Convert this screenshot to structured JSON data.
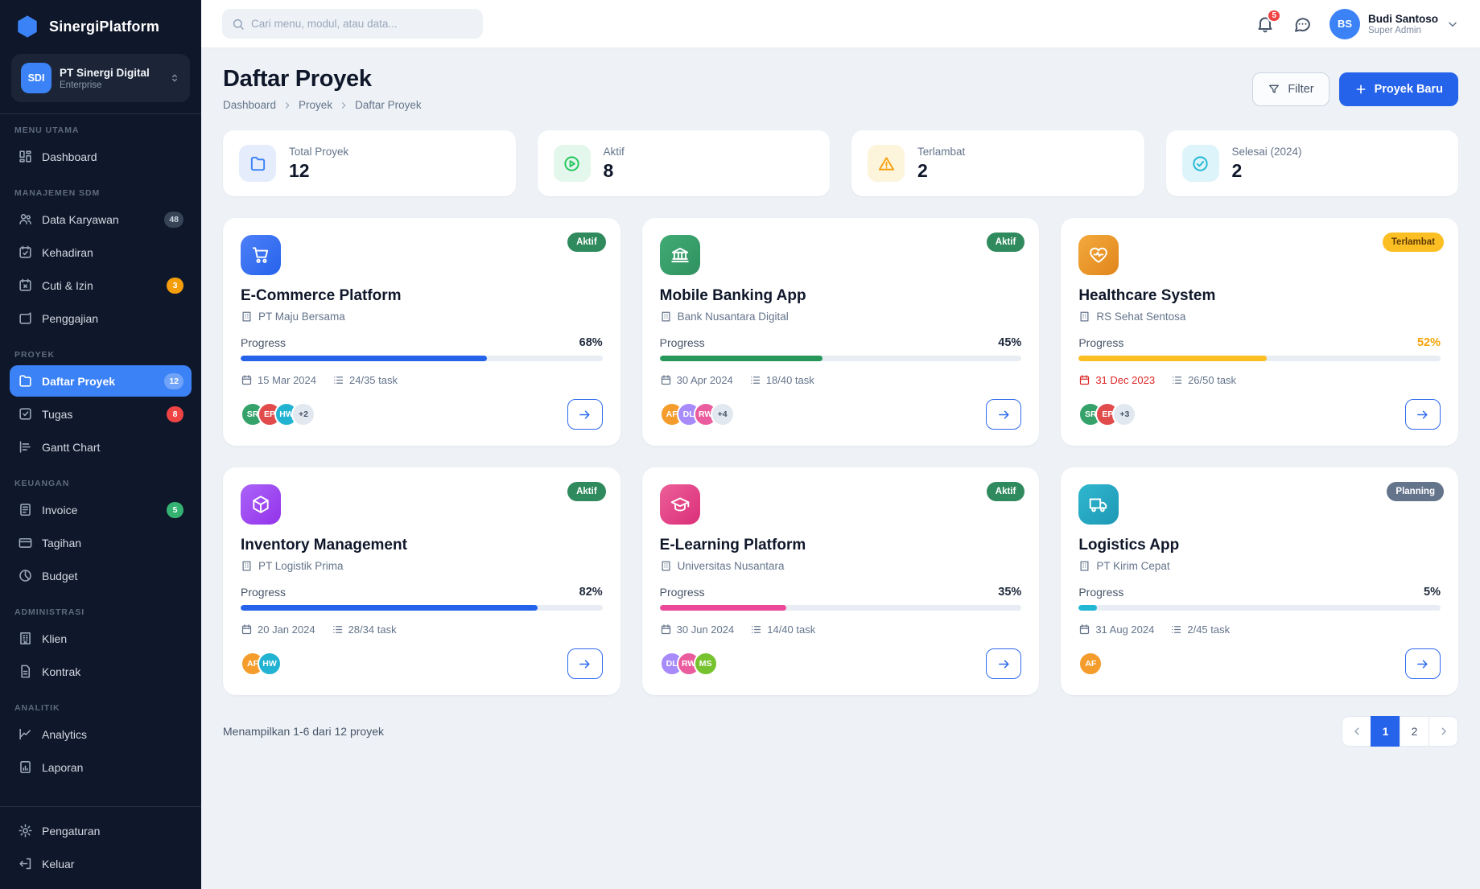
{
  "app": {
    "name": "SinergiPlatform"
  },
  "org": {
    "initials": "SDI",
    "name": "PT Sinergi Digital",
    "plan": "Enterprise"
  },
  "sidebar": {
    "sections": [
      {
        "label": "MENU UTAMA",
        "items": [
          {
            "label": "Dashboard"
          }
        ]
      },
      {
        "label": "MANAJEMEN SDM",
        "items": [
          {
            "label": "Data Karyawan",
            "badge": "48"
          },
          {
            "label": "Kehadiran"
          },
          {
            "label": "Cuti & Izin",
            "badge": "3"
          },
          {
            "label": "Penggajian"
          }
        ]
      },
      {
        "label": "PROYEK",
        "items": [
          {
            "label": "Daftar Proyek",
            "badge": "12",
            "active": true
          },
          {
            "label": "Tugas",
            "badge": "8"
          },
          {
            "label": "Gantt Chart"
          }
        ]
      },
      {
        "label": "KEUANGAN",
        "items": [
          {
            "label": "Invoice",
            "badge": "5"
          },
          {
            "label": "Tagihan"
          },
          {
            "label": "Budget"
          }
        ]
      },
      {
        "label": "ADMINISTRASI",
        "items": [
          {
            "label": "Klien"
          },
          {
            "label": "Kontrak"
          }
        ]
      },
      {
        "label": "ANALITIK",
        "items": [
          {
            "label": "Analytics"
          },
          {
            "label": "Laporan"
          }
        ]
      }
    ],
    "footer_items": [
      {
        "label": "Pengaturan"
      },
      {
        "label": "Keluar"
      }
    ]
  },
  "topbar": {
    "search_placeholder": "Cari menu, modul, atau data...",
    "notification_count": "5",
    "user": {
      "initials": "BS",
      "name": "Budi Santoso",
      "role": "Super Admin"
    }
  },
  "page": {
    "title": "Daftar Proyek",
    "breadcrumb": [
      "Dashboard",
      "Proyek",
      "Daftar Proyek"
    ],
    "filter_label": "Filter",
    "new_project_label": "Proyek Baru"
  },
  "stats": [
    {
      "label": "Total Proyek",
      "value": "12"
    },
    {
      "label": "Aktif",
      "value": "8"
    },
    {
      "label": "Terlambat",
      "value": "2"
    },
    {
      "label": "Selesai (2024)",
      "value": "2"
    }
  ],
  "projects": [
    {
      "name": "E-Commerce Platform",
      "client": "PT Maju Bersama",
      "status": "Aktif",
      "progress_label": "Progress",
      "percent": 68,
      "percent_label": "68%",
      "due": "15 Mar 2024",
      "tasks": "24/35 task",
      "members": [
        {
          "initials": "SR"
        },
        {
          "initials": "EP"
        },
        {
          "initials": "HW"
        }
      ],
      "more": "+2"
    },
    {
      "name": "Mobile Banking App",
      "client": "Bank Nusantara Digital",
      "status": "Aktif",
      "progress_label": "Progress",
      "percent": 45,
      "percent_label": "45%",
      "due": "30 Apr 2024",
      "tasks": "18/40 task",
      "members": [
        {
          "initials": "AF"
        },
        {
          "initials": "DL"
        },
        {
          "initials": "RW"
        }
      ],
      "more": "+4"
    },
    {
      "name": "Healthcare System",
      "client": "RS Sehat Sentosa",
      "status": "Terlambat",
      "progress_label": "Progress",
      "percent": 52,
      "percent_label": "52%",
      "due": "31 Dec 2023",
      "tasks": "26/50 task",
      "members": [
        {
          "initials": "SR"
        },
        {
          "initials": "EP"
        }
      ],
      "more": "+3"
    },
    {
      "name": "Inventory Management",
      "client": "PT Logistik Prima",
      "status": "Aktif",
      "progress_label": "Progress",
      "percent": 82,
      "percent_label": "82%",
      "due": "20 Jan 2024",
      "tasks": "28/34 task",
      "members": [
        {
          "initials": "AF"
        },
        {
          "initials": "HW"
        }
      ]
    },
    {
      "name": "E-Learning Platform",
      "client": "Universitas Nusantara",
      "status": "Aktif",
      "progress_label": "Progress",
      "percent": 35,
      "percent_label": "35%",
      "due": "30 Jun 2024",
      "tasks": "14/40 task",
      "members": [
        {
          "initials": "DL"
        },
        {
          "initials": "RW"
        },
        {
          "initials": "MS"
        }
      ]
    },
    {
      "name": "Logistics App",
      "client": "PT Kirim Cepat",
      "status": "Planning",
      "progress_label": "Progress",
      "percent": 5,
      "percent_label": "5%",
      "due": "31 Aug 2024",
      "tasks": "2/45 task",
      "members": [
        {
          "initials": "AF"
        }
      ]
    }
  ],
  "footer": {
    "showing_text": "Menampilkan 1-6 dari 12 proyek",
    "pages": [
      "1",
      "2"
    ],
    "active_page": "1"
  },
  "colors": {
    "accent": "#2563eb",
    "sidebar_bg": "#0f172a",
    "active_item": "#3b82f6",
    "status_aktif": "#2f8a5d",
    "status_terlambat": "#fbbf24",
    "status_planning": "#64748b",
    "overdue_date": "#dc2626",
    "warn_percent": "#f5a307",
    "avatar_SR": "#34a26a",
    "avatar_EP": "#e14b4b",
    "avatar_HW": "#22b3d3",
    "avatar_AF": "#f49d2c",
    "avatar_DL": "#a78bfa",
    "avatar_RW": "#ea5c9e",
    "avatar_MS": "#76c32f"
  }
}
